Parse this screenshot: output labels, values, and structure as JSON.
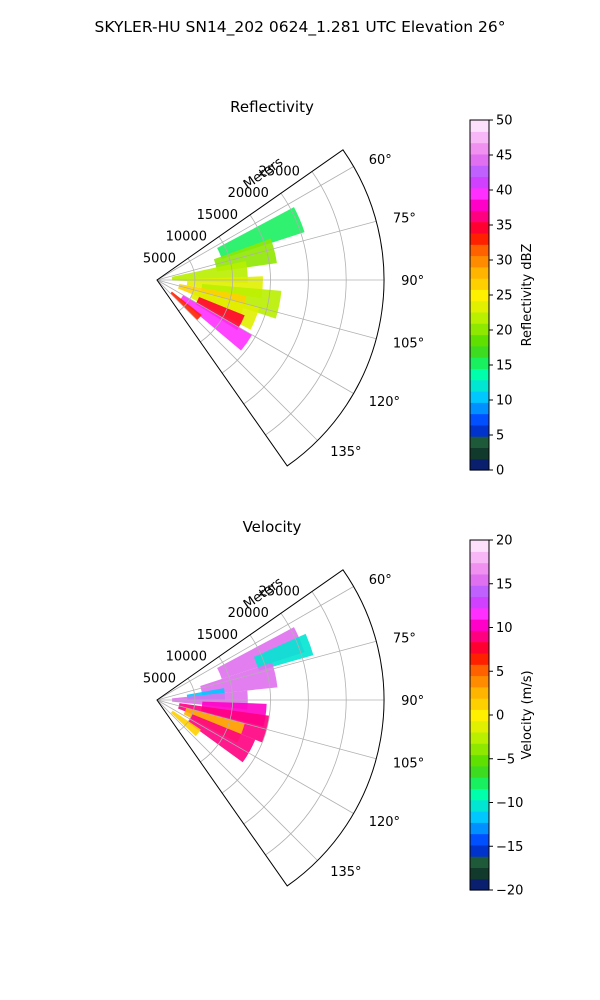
{
  "figure": {
    "title": "SKYLER-HU  SN14_202  0624_1.281 UTC Elevation 26°"
  },
  "chart_data": [
    {
      "type": "polar-sector",
      "title": "Reflectivity",
      "range_axis_label": "Meters",
      "range_ticks": [
        5000,
        10000,
        15000,
        20000,
        25000
      ],
      "range_tick_labels": [
        "5000",
        "10000",
        "15000",
        "20000",
        "25000"
      ],
      "rlim": [
        0,
        30000
      ],
      "azimuth_range_deg": [
        55,
        145
      ],
      "azimuth_ticks": [
        60,
        75,
        90,
        105,
        120,
        135
      ],
      "azimuth_tick_labels": [
        "60°",
        "75°",
        "90°",
        "105°",
        "120°",
        "135°"
      ],
      "grid": true,
      "colorbar": {
        "label": "Reflectivity dBZ",
        "range": [
          0,
          50
        ],
        "ticks": [
          0,
          5,
          10,
          15,
          20,
          25,
          30,
          35,
          40,
          45,
          50
        ],
        "tick_labels": [
          "0",
          "5",
          "10",
          "15",
          "20",
          "25",
          "30",
          "35",
          "40",
          "45",
          "50"
        ],
        "levels": 40,
        "colors": [
          "#0a1f6e",
          "#123a2c",
          "#1e5a3a",
          "#0033cc",
          "#0050ff",
          "#0090ff",
          "#00c8ff",
          "#00e6d2",
          "#00ffaa",
          "#19f060",
          "#3ddc20",
          "#5fe000",
          "#8fe800",
          "#b8f000",
          "#e0f000",
          "#fff000",
          "#ffd000",
          "#ffb400",
          "#ff8c00",
          "#ff6000",
          "#ff2000",
          "#ff0030",
          "#ff0080",
          "#ff00c8",
          "#ff30ff",
          "#d040ff",
          "#c060ff",
          "#e070f0",
          "#f090f0",
          "#f8b8f8",
          "#fde0fb"
        ]
      },
      "echo_regions": [
        {
          "az": [
            62,
            72
          ],
          "r": [
            9000,
            20500
          ],
          "value": 15
        },
        {
          "az": [
            70,
            82
          ],
          "r": [
            8000,
            16000
          ],
          "value": 20
        },
        {
          "az": [
            78,
            92
          ],
          "r": [
            2000,
            12000
          ],
          "value": 22
        },
        {
          "az": [
            88,
            100
          ],
          "r": [
            4000,
            14000
          ],
          "value": 24
        },
        {
          "az": [
            95,
            108
          ],
          "r": [
            6000,
            16500
          ],
          "value": 22
        },
        {
          "az": [
            100,
            112
          ],
          "r": [
            3000,
            12000
          ],
          "value": 27
        },
        {
          "az": [
            105,
            118
          ],
          "r": [
            5000,
            14000
          ],
          "value": 24
        },
        {
          "az": [
            112,
            122
          ],
          "r": [
            6000,
            12500
          ],
          "value": 34
        },
        {
          "az": [
            120,
            130
          ],
          "r": [
            4000,
            14500
          ],
          "value": 40
        },
        {
          "az": [
            128,
            135
          ],
          "r": [
            2500,
            7500
          ],
          "value": 33
        }
      ]
    },
    {
      "type": "polar-sector",
      "title": "Velocity",
      "range_axis_label": "Meters",
      "range_ticks": [
        5000,
        10000,
        15000,
        20000,
        25000
      ],
      "range_tick_labels": [
        "5000",
        "10000",
        "15000",
        "20000",
        "25000"
      ],
      "rlim": [
        0,
        30000
      ],
      "azimuth_range_deg": [
        55,
        145
      ],
      "azimuth_ticks": [
        60,
        75,
        90,
        105,
        120,
        135
      ],
      "azimuth_tick_labels": [
        "60°",
        "75°",
        "90°",
        "105°",
        "120°",
        "135°"
      ],
      "grid": true,
      "colorbar": {
        "label": "Velocity (m/s)",
        "range": [
          -20,
          20
        ],
        "ticks": [
          -20,
          -15,
          -10,
          -5,
          0,
          5,
          10,
          15,
          20
        ],
        "tick_labels": [
          "−20",
          "−15",
          "−10",
          "−5",
          "0",
          "5",
          "10",
          "15",
          "20"
        ],
        "levels": 40,
        "colors": [
          "#0a1f6e",
          "#123a2c",
          "#1e5a3a",
          "#0033cc",
          "#0050ff",
          "#0090ff",
          "#00c8ff",
          "#00e6d2",
          "#00ffaa",
          "#19f060",
          "#3ddc20",
          "#5fe000",
          "#8fe800",
          "#b8f000",
          "#e0f000",
          "#fff000",
          "#ffd000",
          "#ffb400",
          "#ff8c00",
          "#ff6000",
          "#ff2000",
          "#ff0030",
          "#ff0080",
          "#ff00c8",
          "#ff30ff",
          "#d040ff",
          "#c060ff",
          "#e070f0",
          "#f090f0",
          "#f8b8f8",
          "#fde0fb"
        ]
      },
      "echo_regions": [
        {
          "az": [
            62,
            72
          ],
          "r": [
            9000,
            20500
          ],
          "value": 15
        },
        {
          "az": [
            66,
            74
          ],
          "r": [
            14000,
            21500
          ],
          "value": -10
        },
        {
          "az": [
            72,
            84
          ],
          "r": [
            6000,
            16000
          ],
          "value": 15
        },
        {
          "az": [
            80,
            90
          ],
          "r": [
            4000,
            9000
          ],
          "value": -12
        },
        {
          "az": [
            84,
            96
          ],
          "r": [
            2000,
            12000
          ],
          "value": 16
        },
        {
          "az": [
            92,
            104
          ],
          "r": [
            6000,
            14500
          ],
          "value": 10
        },
        {
          "az": [
            98,
            112
          ],
          "r": [
            3000,
            15000
          ],
          "value": 9
        },
        {
          "az": [
            105,
            118
          ],
          "r": [
            4000,
            12000
          ],
          "value": 2
        },
        {
          "az": [
            112,
            126
          ],
          "r": [
            5000,
            14000
          ],
          "value": 9
        },
        {
          "az": [
            124,
            133
          ],
          "r": [
            2500,
            7000
          ],
          "value": 1
        }
      ]
    }
  ]
}
